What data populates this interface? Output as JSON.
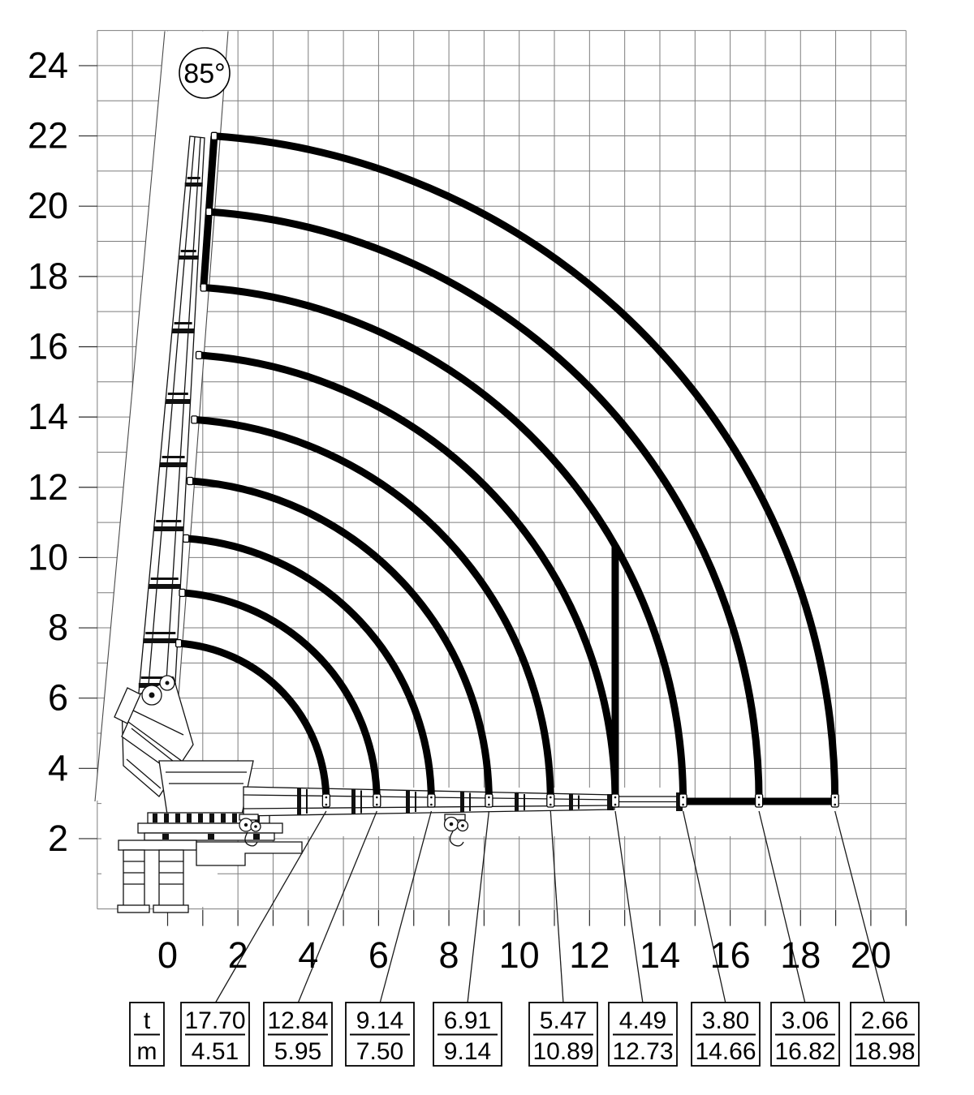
{
  "angle_badge": {
    "label": "85°"
  },
  "axes": {
    "x_ticks": [
      "0",
      "2",
      "4",
      "6",
      "8",
      "10",
      "12",
      "14",
      "16",
      "18",
      "20"
    ],
    "y_ticks": [
      "2",
      "4",
      "6",
      "8",
      "10",
      "12",
      "14",
      "16",
      "18",
      "20",
      "22",
      "24"
    ]
  },
  "table": {
    "header_top": "t",
    "header_bottom": "m",
    "cells": [
      {
        "t": "17.70",
        "m": "4.51"
      },
      {
        "t": "12.84",
        "m": "5.95"
      },
      {
        "t": "9.14",
        "m": "7.50"
      },
      {
        "t": "6.91",
        "m": "9.14"
      },
      {
        "t": "5.47",
        "m": "10.89"
      },
      {
        "t": "4.49",
        "m": "12.73"
      },
      {
        "t": "3.80",
        "m": "14.66"
      },
      {
        "t": "3.06",
        "m": "16.82"
      },
      {
        "t": "2.66",
        "m": "18.98"
      }
    ]
  },
  "chart_data": {
    "type": "line",
    "title": "",
    "xlabel": "",
    "ylabel": "",
    "x_ticks": [
      0,
      2,
      4,
      6,
      8,
      10,
      12,
      14,
      16,
      18,
      20
    ],
    "y_ticks": [
      2,
      4,
      6,
      8,
      10,
      12,
      14,
      16,
      18,
      20,
      22,
      24
    ],
    "xlim": [
      -2,
      21
    ],
    "ylim": [
      0,
      25
    ],
    "grid": true,
    "minor_grid_step_m": 1,
    "max_boom_angle_deg": 85,
    "boom_pivot": {
      "x_m": 0.0,
      "y_m": 3.05
    },
    "load_points": [
      {
        "capacity_t": 17.7,
        "outreach_m": 4.51
      },
      {
        "capacity_t": 12.84,
        "outreach_m": 5.95
      },
      {
        "capacity_t": 9.14,
        "outreach_m": 7.5
      },
      {
        "capacity_t": 6.91,
        "outreach_m": 9.14
      },
      {
        "capacity_t": 5.47,
        "outreach_m": 10.89
      },
      {
        "capacity_t": 4.49,
        "outreach_m": 12.73
      },
      {
        "capacity_t": 3.8,
        "outreach_m": 14.66
      },
      {
        "capacity_t": 3.06,
        "outreach_m": 16.82
      },
      {
        "capacity_t": 2.66,
        "outreach_m": 18.98
      }
    ],
    "envelope": {
      "arc_radii_m": [
        4.51,
        5.95,
        7.5,
        9.14,
        10.89,
        12.73,
        14.66,
        16.82,
        18.98
      ],
      "radial_boundary_angle_deg": 85,
      "vertical_boundary_at_outreach_m": 12.73,
      "bottom_boundary_from_m": 14.66,
      "bottom_boundary_to_m": 18.98
    }
  },
  "colors": {
    "ink": "#000000",
    "grid": "#7d7d7d",
    "background": "#ffffff"
  }
}
